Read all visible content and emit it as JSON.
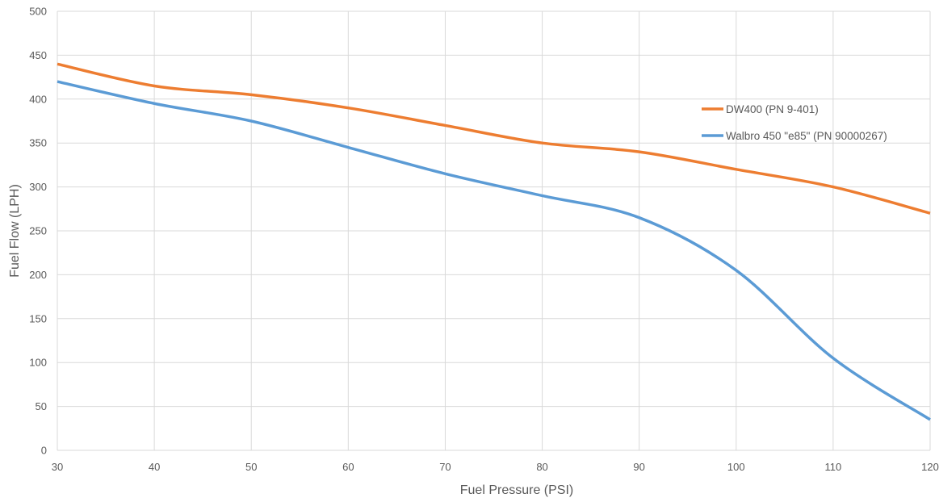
{
  "chart_data": {
    "type": "line",
    "xlabel": "Fuel Pressure (PSI)",
    "ylabel": "Fuel Flow (LPH)",
    "xlim": [
      30,
      120
    ],
    "ylim": [
      0,
      500
    ],
    "x_ticks": [
      30,
      40,
      50,
      60,
      70,
      80,
      90,
      100,
      110,
      120
    ],
    "y_ticks": [
      0,
      50,
      100,
      150,
      200,
      250,
      300,
      350,
      400,
      450,
      500
    ],
    "grid": true,
    "legend_position": "right",
    "x": [
      30,
      40,
      50,
      60,
      70,
      80,
      90,
      100,
      110,
      120
    ],
    "series": [
      {
        "name": "DW400 (PN 9-401)",
        "color": "#ED7D31",
        "values": [
          440,
          415,
          405,
          390,
          370,
          350,
          340,
          320,
          300,
          270
        ]
      },
      {
        "name": "Walbro 450 \"e85\" (PN 90000267)",
        "color": "#5B9BD5",
        "values": [
          420,
          395,
          375,
          345,
          315,
          290,
          265,
          205,
          105,
          35
        ]
      }
    ]
  }
}
